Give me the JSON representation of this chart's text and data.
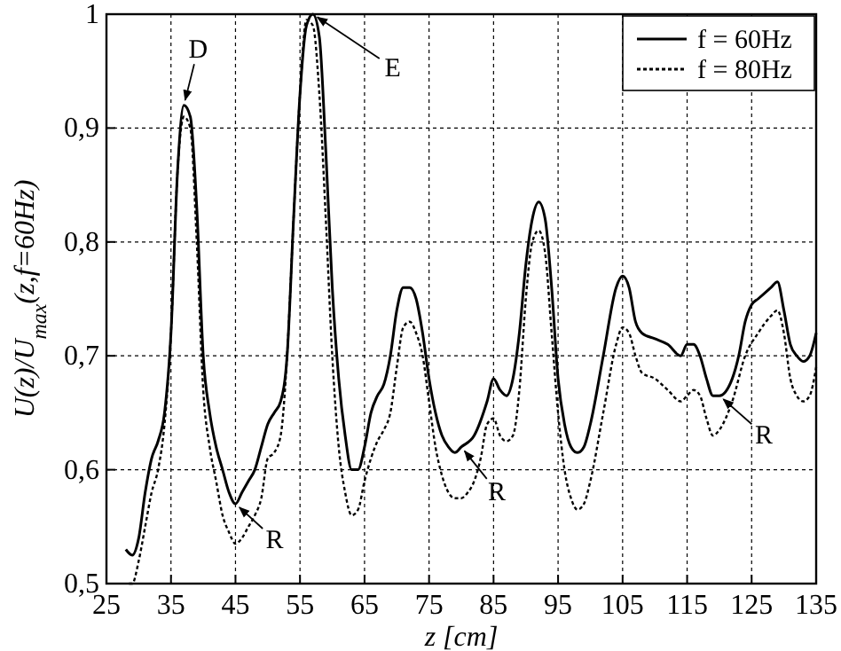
{
  "chart_data": {
    "type": "line",
    "xlabel": "z [cm]",
    "ylabel": "U(z)/U$_{max}$(z,f=60Hz)",
    "xlim": [
      25,
      135
    ],
    "xticks": [
      25,
      35,
      45,
      55,
      65,
      75,
      85,
      95,
      105,
      115,
      125,
      135
    ],
    "ylim": [
      0.5,
      1
    ],
    "yticks": [
      {
        "value": 0.5,
        "label": "0,5"
      },
      {
        "value": 0.6,
        "label": "0,6"
      },
      {
        "value": 0.7,
        "label": "0,7"
      },
      {
        "value": 0.8,
        "label": "0,8"
      },
      {
        "value": 0.9,
        "label": "0,9"
      },
      {
        "value": 1,
        "label": "1"
      }
    ],
    "grid": true,
    "legend": "top right",
    "series": [
      {
        "name": "f = 60Hz",
        "color": "#000000",
        "line_style": "solid",
        "x": [
          28,
          29,
          30,
          31,
          32,
          33,
          34,
          35,
          36,
          37,
          38,
          39,
          40,
          41,
          42,
          43,
          44,
          45,
          46,
          47,
          48,
          49,
          50,
          51,
          52,
          53,
          54,
          55,
          56,
          57,
          58,
          59,
          60,
          61,
          62,
          63,
          64,
          65,
          66,
          67,
          68,
          69,
          70,
          71,
          72,
          73,
          74,
          75,
          76,
          77,
          78,
          79,
          80,
          82,
          84,
          85,
          86,
          87,
          88,
          89,
          90,
          91,
          92,
          93,
          94,
          95,
          96,
          97,
          98,
          99,
          100,
          102,
          104,
          105,
          106,
          107,
          108,
          110,
          112,
          114,
          115,
          116,
          117,
          118,
          119,
          120,
          122,
          123,
          124,
          125,
          126,
          127,
          128,
          129,
          130,
          131,
          132,
          133,
          134,
          135
        ],
        "values": [
          0.53,
          0.525,
          0.54,
          0.58,
          0.61,
          0.625,
          0.65,
          0.72,
          0.86,
          0.92,
          0.91,
          0.83,
          0.7,
          0.65,
          0.62,
          0.6,
          0.58,
          0.57,
          0.58,
          0.59,
          0.6,
          0.62,
          0.64,
          0.65,
          0.66,
          0.7,
          0.82,
          0.93,
          0.99,
          1,
          0.98,
          0.88,
          0.76,
          0.68,
          0.63,
          0.6,
          0.6,
          0.62,
          0.65,
          0.665,
          0.675,
          0.7,
          0.74,
          0.76,
          0.76,
          0.75,
          0.72,
          0.68,
          0.65,
          0.63,
          0.62,
          0.615,
          0.62,
          0.63,
          0.66,
          0.68,
          0.67,
          0.665,
          0.68,
          0.72,
          0.78,
          0.82,
          0.835,
          0.82,
          0.76,
          0.68,
          0.64,
          0.62,
          0.615,
          0.62,
          0.64,
          0.7,
          0.76,
          0.77,
          0.76,
          0.73,
          0.72,
          0.715,
          0.71,
          0.7,
          0.71,
          0.71,
          0.7,
          0.68,
          0.665,
          0.665,
          0.68,
          0.7,
          0.73,
          0.745,
          0.75,
          0.755,
          0.76,
          0.765,
          0.74,
          0.71,
          0.7,
          0.695,
          0.7,
          0.72
        ]
      },
      {
        "name": "f = 80Hz",
        "color": "#000000",
        "line_style": "dotted",
        "x": [
          28.5,
          29,
          30,
          31,
          32,
          33,
          34,
          35,
          36,
          37,
          38,
          39,
          40,
          41,
          42,
          43,
          44,
          45,
          46,
          47,
          48,
          49,
          50,
          51,
          52,
          53,
          54,
          55,
          56,
          57,
          58,
          59,
          60,
          61,
          62,
          63,
          64,
          65,
          66,
          67,
          68,
          69,
          70,
          71,
          72,
          73,
          74,
          75,
          76,
          77,
          78,
          79,
          80,
          81,
          82,
          83,
          84,
          85,
          86,
          87,
          88,
          89,
          90,
          91,
          92,
          93,
          94,
          95,
          96,
          97,
          98,
          99,
          100,
          102,
          104,
          105,
          106,
          107,
          108,
          110,
          112,
          114,
          115,
          116,
          117,
          118,
          119,
          120,
          122,
          124,
          126,
          128,
          129,
          130,
          131,
          132,
          133,
          134,
          135
        ],
        "values": [
          0.5,
          0.5,
          0.52,
          0.55,
          0.58,
          0.6,
          0.64,
          0.72,
          0.86,
          0.91,
          0.9,
          0.8,
          0.67,
          0.62,
          0.59,
          0.56,
          0.545,
          0.535,
          0.54,
          0.55,
          0.56,
          0.575,
          0.61,
          0.615,
          0.63,
          0.7,
          0.82,
          0.93,
          0.995,
          0.99,
          0.93,
          0.82,
          0.7,
          0.62,
          0.58,
          0.56,
          0.565,
          0.59,
          0.61,
          0.625,
          0.635,
          0.65,
          0.69,
          0.725,
          0.73,
          0.72,
          0.7,
          0.66,
          0.62,
          0.595,
          0.58,
          0.575,
          0.575,
          0.58,
          0.59,
          0.61,
          0.64,
          0.645,
          0.63,
          0.625,
          0.63,
          0.67,
          0.75,
          0.8,
          0.81,
          0.79,
          0.72,
          0.65,
          0.6,
          0.575,
          0.565,
          0.57,
          0.59,
          0.65,
          0.71,
          0.725,
          0.72,
          0.7,
          0.685,
          0.68,
          0.67,
          0.66,
          0.665,
          0.67,
          0.665,
          0.645,
          0.63,
          0.635,
          0.66,
          0.7,
          0.72,
          0.735,
          0.74,
          0.72,
          0.68,
          0.665,
          0.66,
          0.665,
          0.69
        ]
      }
    ],
    "annotations": [
      {
        "text": "D",
        "x": 37,
        "y": 0.92
      },
      {
        "text": "E",
        "x": 57,
        "y": 1
      },
      {
        "text": "R",
        "x": 45,
        "y": 0.57
      },
      {
        "text": "R",
        "x": 80,
        "y": 0.62
      },
      {
        "text": "R",
        "x": 120,
        "y": 0.665
      }
    ]
  }
}
